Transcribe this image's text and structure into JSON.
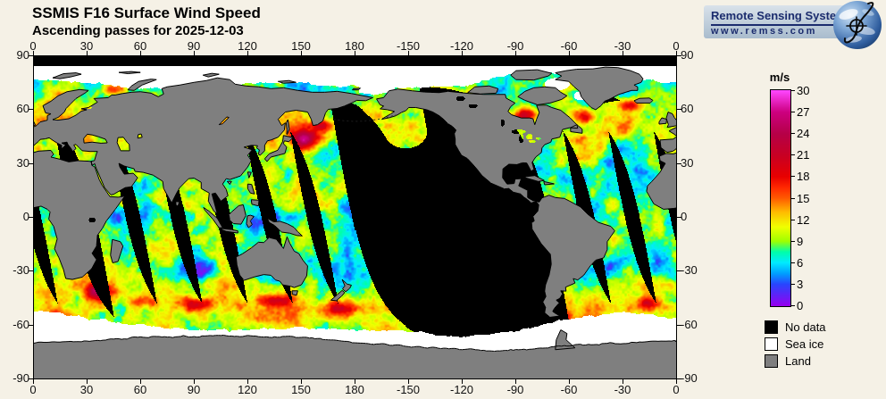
{
  "header": {
    "title": "SSMIS F16 Surface Wind Speed",
    "subtitle": "Ascending passes for 2025-12-03"
  },
  "logo": {
    "name": "Remote Sensing Systems",
    "url": "www.remss.com"
  },
  "axes": {
    "lon_labels": [
      "0",
      "30",
      "60",
      "90",
      "120",
      "150",
      "180",
      "-150",
      "-120",
      "-90",
      "-60",
      "-30",
      "0"
    ],
    "lat_labels": [
      "90",
      "60",
      "30",
      "0",
      "-30",
      "-60",
      "-90"
    ]
  },
  "colorbar": {
    "unit": "m/s",
    "min": 0,
    "max": 30,
    "tick_labels": [
      "30",
      "27",
      "24",
      "21",
      "18",
      "15",
      "12",
      "9",
      "6",
      "3",
      "0"
    ]
  },
  "legend": {
    "items": [
      {
        "label": "No data",
        "color": "#000000"
      },
      {
        "label": "Sea ice",
        "color": "#ffffff"
      },
      {
        "label": "Land",
        "color": "#7f7f7f"
      }
    ]
  },
  "chart_data": {
    "type": "heatmap",
    "title": "SSMIS F16 Surface Wind Speed",
    "pass_type": "Ascending",
    "date": "2025-12-03",
    "variable": "surface wind speed",
    "units": "m/s",
    "value_range": [
      0,
      30
    ],
    "colorbar_ticks": [
      0,
      3,
      6,
      9,
      12,
      15,
      18,
      21,
      24,
      27,
      30
    ],
    "projection": "equirectangular",
    "lon_axis_ticks": [
      0,
      30,
      60,
      90,
      120,
      150,
      180,
      -150,
      -120,
      -90,
      -60,
      -30,
      0
    ],
    "lat_axis_ticks": [
      90,
      60,
      30,
      0,
      -30,
      -60,
      -90
    ],
    "categories": [
      "No data",
      "Sea ice",
      "Land"
    ],
    "coverage_note": "Diagonal ascending satellite swaths over oceans; large no-data void across the central/eastern Pacific; sea ice bands at both poles; no data poleward of ~84 degrees"
  }
}
